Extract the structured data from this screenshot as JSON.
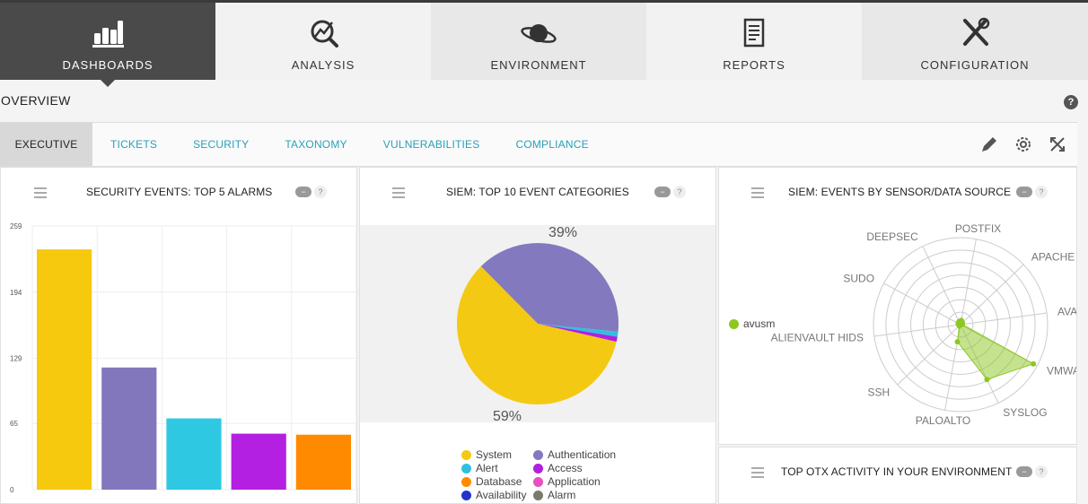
{
  "nav": [
    {
      "label": "DASHBOARDS",
      "icon": "bar-chart-icon",
      "active": true
    },
    {
      "label": "ANALYSIS",
      "icon": "magnifier-chart-icon",
      "active": false
    },
    {
      "label": "ENVIRONMENT",
      "icon": "planet-icon",
      "active": false
    },
    {
      "label": "REPORTS",
      "icon": "document-icon",
      "active": false
    },
    {
      "label": "CONFIGURATION",
      "icon": "tools-icon",
      "active": false
    }
  ],
  "page": {
    "title": "OVERVIEW",
    "help": "?"
  },
  "tabs": [
    {
      "label": "EXECUTIVE",
      "active": true
    },
    {
      "label": "TICKETS"
    },
    {
      "label": "SECURITY"
    },
    {
      "label": "TAXONOMY"
    },
    {
      "label": "VULNERABILITIES"
    },
    {
      "label": "COMPLIANCE"
    }
  ],
  "tools": [
    "pencil-icon",
    "gear-icon",
    "fullscreen-icon"
  ],
  "widgets": {
    "alarms": {
      "title": "SECURITY EVENTS: TOP 5 ALARMS",
      "toggle": "−",
      "help": "?"
    },
    "categories": {
      "title": "SIEM: TOP 10 EVENT CATEGORIES",
      "toggle": "−",
      "help": "?"
    },
    "sensors": {
      "title": "SIEM: EVENTS BY SENSOR/DATA SOURCE",
      "toggle": "−",
      "help": "?"
    },
    "otx": {
      "title": "TOP OTX ACTIVITY IN YOUR ENVIRONMENT",
      "toggle": "−",
      "help": "?"
    }
  },
  "chart_data": [
    {
      "type": "bar",
      "yticks": [
        "259",
        "194",
        "129",
        "65",
        "0"
      ],
      "ylim": [
        0,
        259
      ],
      "values": [
        236,
        120,
        70,
        55,
        54
      ],
      "colors": [
        "#f6c90e",
        "#8277bd",
        "#2ec8e2",
        "#b320e2",
        "#ff8a00"
      ]
    },
    {
      "type": "pie",
      "labels_shown": [
        "39%",
        "59%"
      ],
      "slices": [
        {
          "name": "System",
          "value": 59,
          "color": "#f4c913"
        },
        {
          "name": "Authentication",
          "value": 39,
          "color": "#8379bf"
        },
        {
          "name": "Alert",
          "value": 1,
          "color": "#30bfe0"
        },
        {
          "name": "Access",
          "value": 1,
          "color": "#b21fe0"
        }
      ],
      "legend": [
        {
          "name": "System",
          "color": "#f4c913"
        },
        {
          "name": "Authentication",
          "color": "#8379bf"
        },
        {
          "name": "Alert",
          "color": "#30bfe0"
        },
        {
          "name": "Access",
          "color": "#b21fe0"
        },
        {
          "name": "Database",
          "color": "#ff8a00"
        },
        {
          "name": "Application",
          "color": "#e94fc0"
        },
        {
          "name": "Availability",
          "color": "#2233cc"
        },
        {
          "name": "Alarm",
          "color": "#7a7a6a"
        }
      ]
    },
    {
      "type": "radar",
      "axes": [
        "POSTFIX",
        "APACHE",
        "AVAIL/",
        "VMWAI",
        "SYSLOG",
        "PALOALTO",
        "SSH",
        "ALIENVAULT HIDS",
        "SUDO",
        "DEEPSEC"
      ],
      "series": [
        {
          "name": "avusm",
          "color": "#8cc820",
          "values": [
            0.05,
            0.03,
            0.02,
            0.95,
            0.7,
            0.2,
            0.02,
            0.02,
            0.03,
            0.04
          ]
        }
      ]
    }
  ]
}
